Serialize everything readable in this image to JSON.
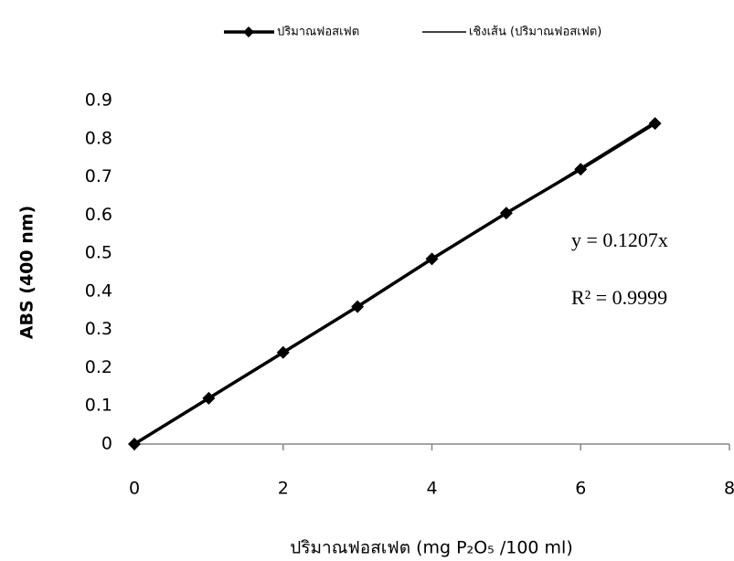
{
  "chart_data": {
    "type": "line",
    "x": [
      0,
      1,
      2,
      3,
      4,
      5,
      6,
      7
    ],
    "series": [
      {
        "name": "ปริมาณฟอสเฟต",
        "color": "#000000",
        "values": [
          0,
          0.12,
          0.24,
          0.36,
          0.485,
          0.605,
          0.72,
          0.84
        ]
      }
    ],
    "trendline": {
      "name": "เชิงเส้น (ปริมาณฟอสเฟต)",
      "color": "#000000",
      "slope": 0.1207
    },
    "annotations": [
      "y = 0.1207x",
      "R² = 0.9999"
    ],
    "x_label": "ปริมาณฟอสเฟต (mg P₂O₅ /100 ml)",
    "y_label": "ABS (400 nm)",
    "xlim": [
      0,
      8
    ],
    "xticks": [
      0,
      2,
      4,
      6,
      8
    ],
    "ylim": [
      0,
      0.9
    ],
    "yticks": [
      0,
      0.1,
      0.2,
      0.3,
      0.4,
      0.5,
      0.6,
      0.7,
      0.8,
      0.9
    ],
    "legend": "top"
  }
}
